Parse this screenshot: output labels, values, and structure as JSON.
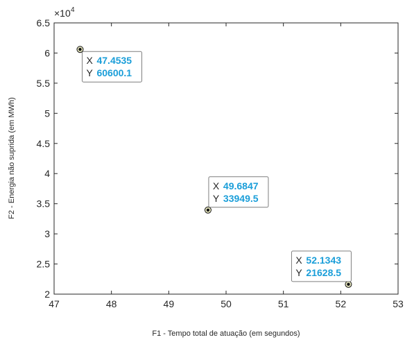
{
  "chart_data": {
    "type": "scatter",
    "xlabel": "F1 - Tempo total de atuação (em segundos)",
    "ylabel": "F2 - Energia não suprida (em MWh)",
    "xlim": [
      47,
      53
    ],
    "ylim": [
      2,
      6.5
    ],
    "x_ticks": [
      "47",
      "48",
      "49",
      "50",
      "51",
      "52",
      "53"
    ],
    "y_ticks": [
      "2",
      "2.5",
      "3",
      "3.5",
      "4",
      "4.5",
      "5",
      "5.5",
      "6",
      "6.5"
    ],
    "y_exponent": "4",
    "grid": false,
    "points": [
      {
        "x": 47.4535,
        "y": 6.06001,
        "tip_x_key": "X",
        "tip_x": "47.4535",
        "tip_y_key": "Y",
        "tip_y": "60600.1"
      },
      {
        "x": 49.6847,
        "y": 3.39495,
        "tip_x_key": "X",
        "tip_x": "49.6847",
        "tip_y_key": "Y",
        "tip_y": "33949.5"
      },
      {
        "x": 52.1343,
        "y": 2.16285,
        "tip_x_key": "X",
        "tip_x": "52.1343",
        "tip_y_key": "Y",
        "tip_y": "21628.5"
      }
    ],
    "colors": {
      "axis": "#262626",
      "marker_fill": "#111111",
      "marker_ring": "#e8e8c0",
      "tip_value": "#1a9ed9",
      "tip_border": "#7f7f7f"
    }
  }
}
